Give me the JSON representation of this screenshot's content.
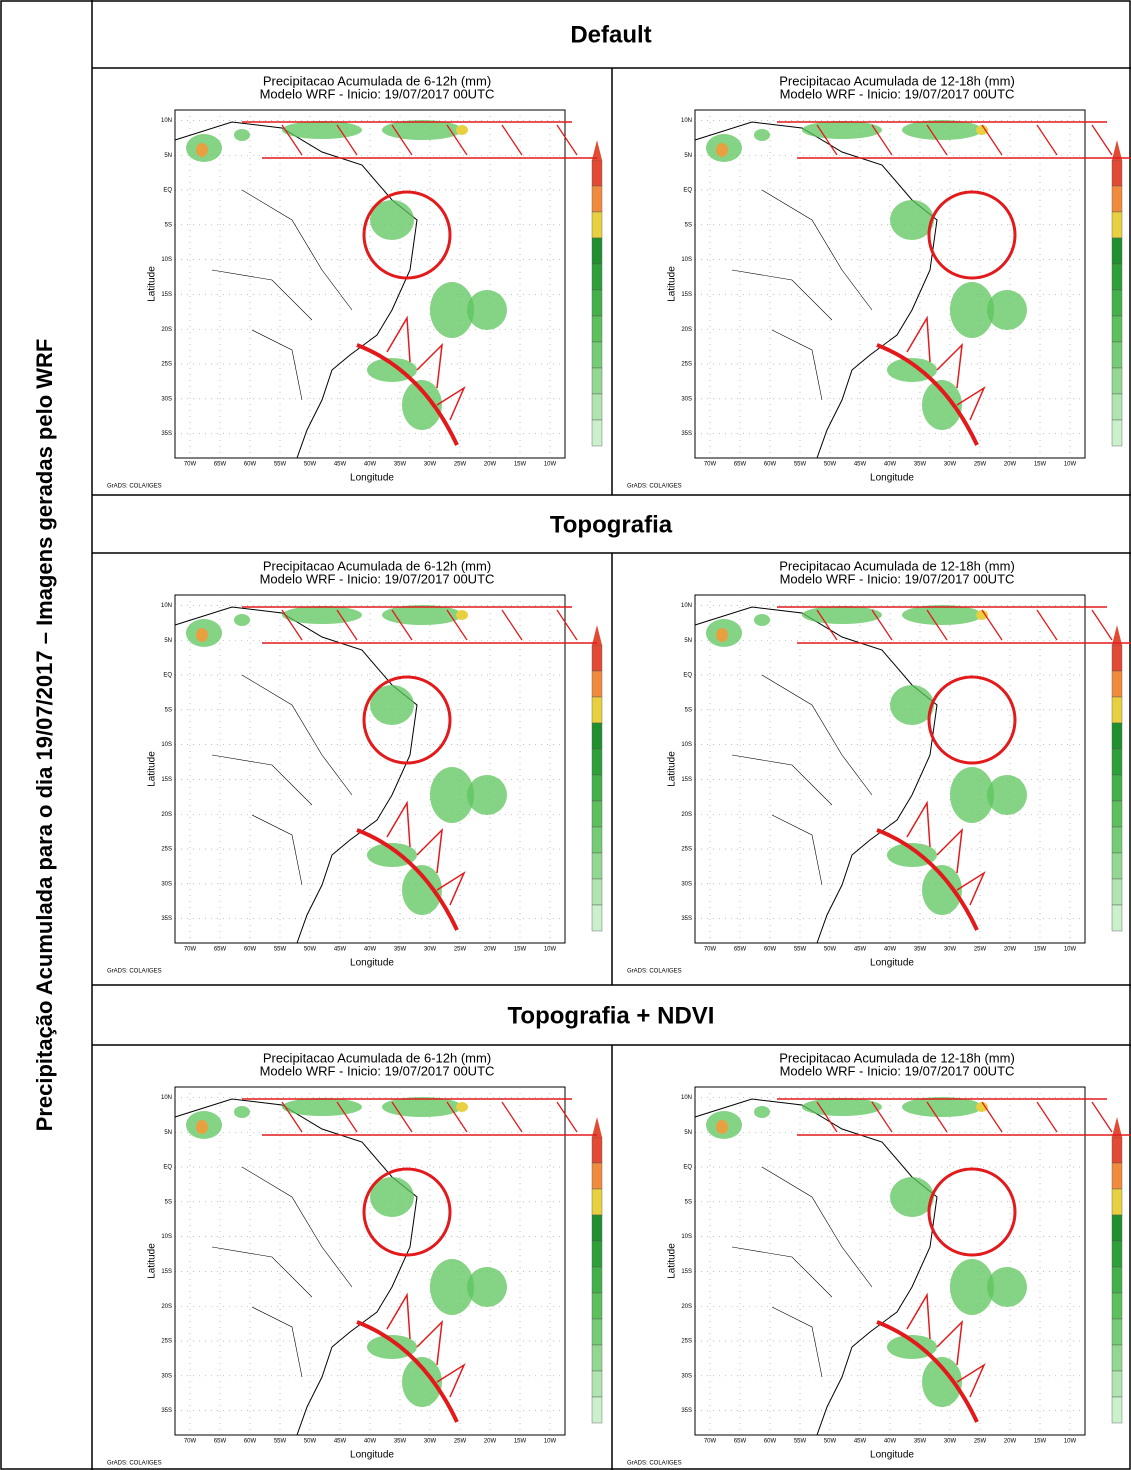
{
  "side_label": "Precipitação Acumulada para o dia 19/07/2017 – Imagens geradas pelo WRF",
  "map": {
    "y_label": "Latitude",
    "x_label": "Longitude",
    "credit": "GrADS: COLA/IGES",
    "lat_ticks": [
      "10N",
      "5N",
      "EQ",
      "5S",
      "10S",
      "15S",
      "20S",
      "25S",
      "30S",
      "35S"
    ],
    "lon_ticks": [
      "70W",
      "65W",
      "60W",
      "55W",
      "50W",
      "45W",
      "40W",
      "35W",
      "30W",
      "25W",
      "20W",
      "15W",
      "10W"
    ]
  },
  "rows": [
    {
      "label": "Default",
      "panels": [
        {
          "title": "Precipitacao Acumulada de 6-12h (mm)",
          "subtitle": "Modelo WRF - Inicio:  19/07/2017 00UTC"
        },
        {
          "title": "Precipitacao Acumulada de 12-18h (mm)",
          "subtitle": "Modelo WRF - Inicio:  19/07/2017 00UTC"
        }
      ]
    },
    {
      "label": "Topografia",
      "panels": [
        {
          "title": "Precipitacao Acumulada de 6-12h (mm)",
          "subtitle": "Modelo WRF - Inicio:  19/07/2017 00UTC"
        },
        {
          "title": "Precipitacao Acumulada de 12-18h (mm)",
          "subtitle": "Modelo WRF - Inicio:  19/07/2017 00UTC"
        }
      ]
    },
    {
      "label": "Topografia + NDVI",
      "panels": [
        {
          "title": "Precipitacao Acumulada de 6-12h (mm)",
          "subtitle": "Modelo WRF - Inicio:  19/07/2017 00UTC"
        },
        {
          "title": "Precipitacao Acumulada de 12-18h (mm)",
          "subtitle": "Modelo WRF - Inicio:  19/07/2017 00UTC"
        }
      ]
    }
  ]
}
